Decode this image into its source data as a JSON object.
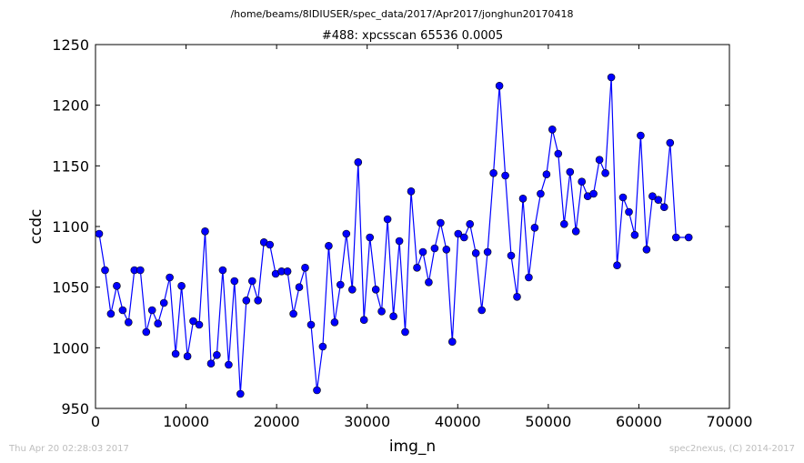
{
  "header": {
    "file_path": "/home/beams/8IDIUSER/spec_data/2017/Apr2017/jonghun20170418"
  },
  "footer": {
    "timestamp": "Thu Apr 20 02:28:03 2017",
    "credit": "spec2nexus, (C) 2014-2017"
  },
  "chart_data": {
    "type": "line",
    "title": "#488: xpcsscan 65536 0.0005",
    "xlabel": "img_n",
    "ylabel": "ccdc",
    "xlim": [
      0,
      70000
    ],
    "ylim": [
      950,
      1250
    ],
    "xticks": [
      "0",
      "10000",
      "20000",
      "30000",
      "40000",
      "50000",
      "60000",
      "70000"
    ],
    "yticks": [
      "950",
      "1000",
      "1050",
      "1100",
      "1150",
      "1200",
      "1250"
    ],
    "grid": false,
    "line_color": "#0000ff",
    "marker": "circle",
    "x": [
      400,
      1050,
      1700,
      2350,
      3000,
      3650,
      4300,
      4950,
      5600,
      6250,
      6900,
      7550,
      8200,
      8850,
      9500,
      10150,
      10800,
      11450,
      12100,
      12750,
      13400,
      14050,
      14700,
      15350,
      16000,
      16650,
      17300,
      17950,
      18600,
      19250,
      19900,
      20550,
      21200,
      21850,
      22500,
      23150,
      23800,
      24450,
      25100,
      25750,
      26400,
      27050,
      27700,
      28350,
      29000,
      29650,
      30300,
      30950,
      31600,
      32250,
      32900,
      33550,
      34200,
      34850,
      35500,
      36150,
      36800,
      37450,
      38100,
      38750,
      39400,
      40050,
      40700,
      41350,
      42000,
      42650,
      43300,
      43950,
      44600,
      45250,
      45900,
      46550,
      47200,
      47850,
      48500,
      49150,
      49800,
      50450,
      51100,
      51750,
      52400,
      53050,
      53700,
      54350,
      55000,
      55650,
      56300,
      56950,
      57600,
      58250,
      58900,
      59550,
      60200,
      60850,
      61500,
      62150,
      62800,
      63450,
      64100,
      65500
    ],
    "values": [
      1094,
      1064,
      1028,
      1051,
      1031,
      1021,
      1064,
      1064,
      1013,
      1031,
      1020,
      1037,
      1058,
      995,
      1051,
      993,
      1022,
      1019,
      1096,
      987,
      994,
      1064,
      986,
      1055,
      962,
      1039,
      1055,
      1039,
      1087,
      1085,
      1061,
      1063,
      1063,
      1028,
      1050,
      1066,
      1019,
      965,
      1001,
      1084,
      1021,
      1052,
      1094,
      1048,
      1153,
      1023,
      1091,
      1048,
      1030,
      1106,
      1026,
      1088,
      1013,
      1129,
      1066,
      1079,
      1054,
      1082,
      1103,
      1081,
      1005,
      1094,
      1091,
      1102,
      1078,
      1031,
      1079,
      1144,
      1216,
      1142,
      1076,
      1042,
      1123,
      1058,
      1099,
      1127,
      1143,
      1180,
      1160,
      1102,
      1145,
      1096,
      1137,
      1125,
      1127,
      1155,
      1144,
      1223,
      1068,
      1124,
      1112,
      1093,
      1175,
      1081,
      1125,
      1122,
      1116,
      1169,
      1091,
      1091
    ]
  }
}
